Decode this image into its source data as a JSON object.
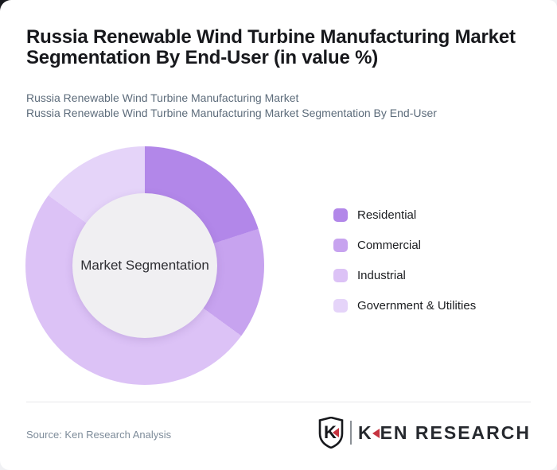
{
  "page": {
    "title": "Russia Renewable Wind Turbine Manufacturing Market Segmentation By End-User (in value %)",
    "subtitle_line1": "Russia Renewable Wind Turbine Manufacturing Market",
    "subtitle_line2": "Russia Renewable Wind Turbine Manufacturing Market Segmentation By End-User"
  },
  "chart_data": {
    "type": "pie",
    "variant": "donut",
    "title": "Russia Renewable Wind Turbine Manufacturing Market Segmentation By End-User (in value %)",
    "center_label": "Market Segmentation",
    "start_angle_deg": 0,
    "legend_position": "right",
    "data_labels_shown": false,
    "units": "% of value",
    "series": [
      {
        "name": "Residential",
        "value": 20,
        "color": "#b287e9"
      },
      {
        "name": "Commercial",
        "value": 15,
        "color": "#c7a3ef"
      },
      {
        "name": "Industrial",
        "value": 50,
        "color": "#dcc2f6"
      },
      {
        "name": "Government & Utilities",
        "value": 15,
        "color": "#e5d4f9"
      }
    ]
  },
  "footer": {
    "source_text": "Source: Ken Research Analysis",
    "logo": {
      "shield_letter": "K",
      "brand_first_letter": "K",
      "brand_rest": "EN RESEARCH"
    }
  },
  "colors": {
    "title_text": "#17181c",
    "subtitle_text": "#5d6c7b",
    "donut_hole": "#f0eff2",
    "divider": "#e8e8ea",
    "source_text": "#7e8c9a",
    "logo_red": "#c63440",
    "logo_dark": "#26292e",
    "backdrop": "#f0f1f4",
    "backdrop_corner_dark": "#181a1f"
  }
}
